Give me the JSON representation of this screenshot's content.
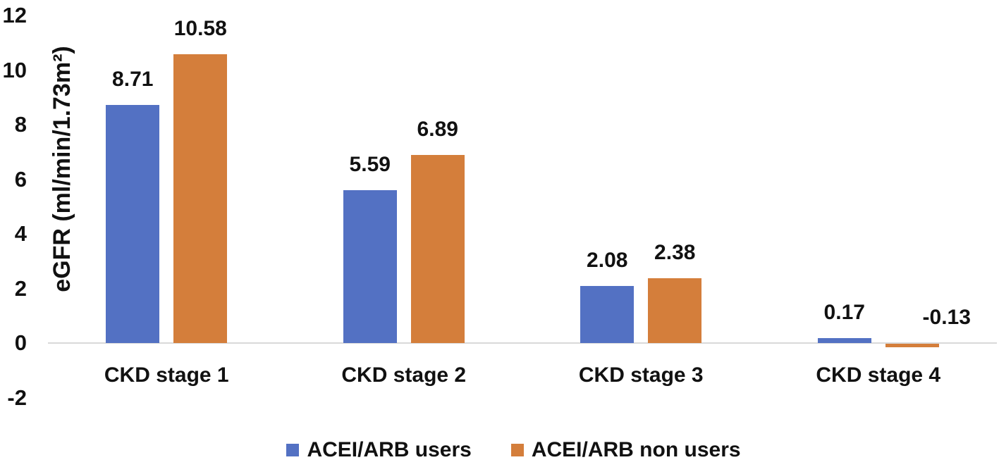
{
  "chart_data": {
    "type": "bar",
    "title": "",
    "categories": [
      "CKD stage 1",
      "CKD stage 2",
      "CKD stage 3",
      "CKD stage 4"
    ],
    "series": [
      {
        "name": "ACEI/ARB users",
        "color": "#5371C3",
        "values": [
          8.71,
          5.59,
          2.08,
          0.17
        ],
        "value_labels": [
          "8.71",
          "5.59",
          "2.08",
          "0.17"
        ]
      },
      {
        "name": "ACEI/ARB non users",
        "color": "#D47E3B",
        "values": [
          10.58,
          6.89,
          2.38,
          -0.13
        ],
        "value_labels": [
          "10.58",
          "6.89",
          "2.38",
          "-0.13"
        ]
      }
    ],
    "xlabel": "",
    "ylabel": "eGFR (ml/min/1.73m²)",
    "y_ticks": [
      12,
      10,
      8,
      6,
      4,
      2,
      0,
      -2
    ],
    "ylim": [
      -2,
      12
    ],
    "grid": false,
    "legend_position": "bottom",
    "axis_line_color": "#d9d9d9",
    "text_color": "#111111"
  }
}
